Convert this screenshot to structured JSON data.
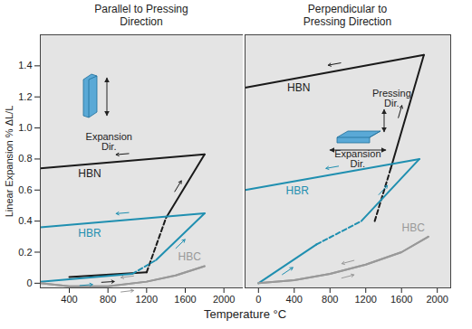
{
  "chart_data": {
    "type": "line",
    "xlabel": "Temperature °C",
    "ylabel": "Linear Expansion % ΔL/L",
    "ylim": [
      -0.03,
      1.6
    ],
    "yticks": [
      0,
      0.2,
      0.4,
      0.6,
      0.8,
      {
        "value": 1,
        "label": "1.0"
      },
      1.2,
      1.4
    ],
    "panels": [
      {
        "title": "Parallel to Pressing Direction",
        "xlim": [
          100,
          2200
        ],
        "xticks": [
          400,
          800,
          1200,
          1600,
          2000
        ],
        "annotations": [
          {
            "text": "Expansion Dir.",
            "x": 810,
            "y": 0.91
          }
        ],
        "series": [
          {
            "name": "HBN",
            "color": "#1a1a1a",
            "segments": [
              {
                "line_style": "solid",
                "x": [
                  400,
                  1200
                ],
                "values": [
                  0.04,
                  0.07
                ]
              },
              {
                "line_style": "dashed",
                "x": [
                  1200,
                  1400
                ],
                "values": [
                  0.07,
                  0.42
                ]
              },
              {
                "line_style": "solid",
                "x": [
                  1400,
                  1800
                ],
                "values": [
                  0.42,
                  0.83
                ]
              },
              {
                "line_style": "solid",
                "x": [
                  1800,
                  100
                ],
                "values": [
                  0.83,
                  0.74
                ]
              }
            ]
          },
          {
            "name": "HBR",
            "color": "#1f8fb0",
            "segments": [
              {
                "line_style": "solid",
                "x": [
                  100,
                  1050
                ],
                "values": [
                  0.01,
                  0.06
                ]
              },
              {
                "line_style": "dashed",
                "x": [
                  1050,
                  1300
                ],
                "values": [
                  0.06,
                  0.15
                ]
              },
              {
                "line_style": "solid",
                "x": [
                  1300,
                  1800
                ],
                "values": [
                  0.15,
                  0.45
                ]
              },
              {
                "line_style": "solid",
                "x": [
                  1800,
                  100
                ],
                "values": [
                  0.45,
                  0.36
                ]
              }
            ]
          },
          {
            "name": "HBC",
            "color": "#999999",
            "segments": [
              {
                "line_style": "solid",
                "x": [
                  100,
                  400,
                  800,
                  1200,
                  1500,
                  1800
                ],
                "values": [
                  0,
                  -0.02,
                  -0.02,
                  0.01,
                  0.05,
                  0.11
                ]
              },
              {
                "line_style": "solid",
                "x": [
                  1800,
                  1500,
                  1200,
                  800,
                  400,
                  100
                ],
                "values": [
                  0.11,
                  0.05,
                  0.01,
                  -0.02,
                  -0.02,
                  0
                ]
              }
            ]
          }
        ]
      },
      {
        "title": "Perpendicular to Pressing Direction",
        "xlim": [
          -150,
          2150
        ],
        "xticks": [
          0,
          400,
          800,
          1200,
          1600,
          2000
        ],
        "tick_labels": "x",
        "annotations": [
          {
            "text": "Pressing Dir.",
            "x": 1490,
            "y": 1.19
          },
          {
            "text": "Expansion Dir.",
            "x": 1110,
            "y": 0.8
          }
        ],
        "series": [
          {
            "name": "HBN",
            "color": "#1a1a1a",
            "segments": [
              {
                "line_style": "dashed",
                "x": [
                  1300,
                  1480
                ],
                "values": [
                  0.4,
                  0.74
                ]
              },
              {
                "line_style": "solid",
                "x": [
                  1480,
                  1850
                ],
                "values": [
                  0.74,
                  1.47
                ]
              },
              {
                "line_style": "solid",
                "x": [
                  1850,
                  -150
                ],
                "values": [
                  1.47,
                  1.26
                ]
              }
            ]
          },
          {
            "name": "HBR",
            "color": "#1f8fb0",
            "segments": [
              {
                "line_style": "solid",
                "x": [
                  0,
                  650
                ],
                "values": [
                  0,
                  0.25
                ]
              },
              {
                "line_style": "dashed",
                "x": [
                  650,
                  1150
                ],
                "values": [
                  0.25,
                  0.4
                ]
              },
              {
                "line_style": "solid",
                "x": [
                  1150,
                  1800
                ],
                "values": [
                  0.4,
                  0.8
                ]
              },
              {
                "line_style": "solid",
                "x": [
                  1800,
                  -150
                ],
                "values": [
                  0.8,
                  0.6
                ]
              }
            ]
          },
          {
            "name": "HBC",
            "color": "#999999",
            "segments": [
              {
                "line_style": "solid",
                "x": [
                  0,
                  400,
                  800,
                  1200,
                  1600,
                  1900
                ],
                "values": [
                  0,
                  0.02,
                  0.06,
                  0.12,
                  0.2,
                  0.3
                ]
              },
              {
                "line_style": "solid",
                "x": [
                  1900,
                  1600,
                  1200,
                  800,
                  400,
                  0
                ],
                "values": [
                  0.3,
                  0.2,
                  0.12,
                  0.06,
                  0.02,
                  0
                ]
              }
            ]
          }
        ]
      }
    ]
  }
}
